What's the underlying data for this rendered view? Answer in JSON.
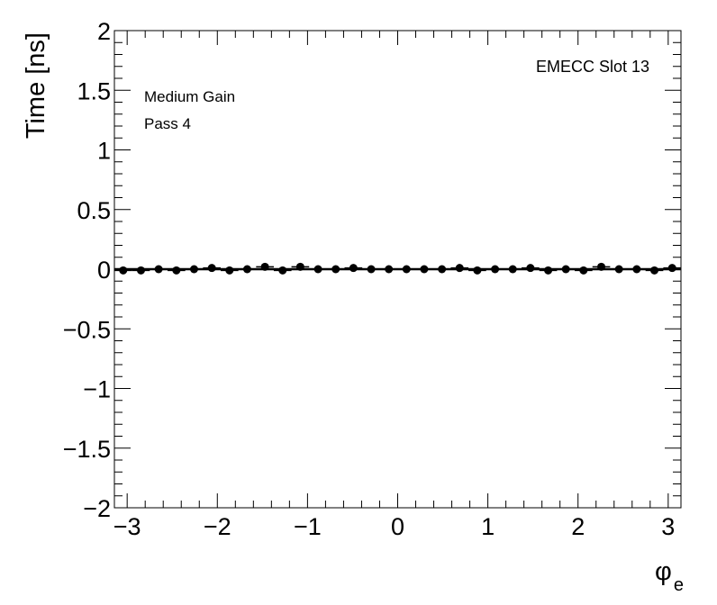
{
  "chart_data": {
    "type": "scatter",
    "xlabel_symbol": "φ",
    "xlabel_subscript": "e",
    "ylabel": "Time [ns]",
    "xlim": [
      -3.1416,
      3.1416
    ],
    "ylim": [
      -2,
      2
    ],
    "x_ticks": [
      -3,
      -2,
      -1,
      0,
      1,
      2,
      3
    ],
    "x_tick_labels": [
      "−3",
      "−2",
      "−1",
      "0",
      "1",
      "2",
      "3"
    ],
    "y_ticks": [
      -2,
      -1.5,
      -1,
      -0.5,
      0,
      0.5,
      1,
      1.5,
      2
    ],
    "y_tick_labels": [
      "−2",
      "−1.5",
      "−1",
      "−0.5",
      "0",
      "0.5",
      "1",
      "1.5",
      "2"
    ],
    "annotations": {
      "top_right": "EMECC Slot 13",
      "line1": "Medium Gain",
      "line2": "Pass 4"
    },
    "grid": false,
    "horizontal_reference_line": 0,
    "series": [
      {
        "x": [
          -3.044,
          -2.847,
          -2.651,
          -2.454,
          -2.258,
          -2.061,
          -1.865,
          -1.669,
          -1.472,
          -1.276,
          -1.08,
          -0.883,
          -0.687,
          -0.491,
          -0.294,
          -0.098,
          0.098,
          0.294,
          0.491,
          0.687,
          0.883,
          1.08,
          1.276,
          1.472,
          1.669,
          1.865,
          2.061,
          2.258,
          2.454,
          2.651,
          2.847,
          3.044
        ],
        "y": [
          -0.01,
          -0.01,
          0.0,
          -0.01,
          0.0,
          0.01,
          -0.01,
          0.0,
          0.02,
          -0.01,
          0.02,
          0.0,
          0.0,
          0.01,
          0.0,
          0.0,
          0.0,
          0.0,
          0.0,
          0.01,
          -0.01,
          0.0,
          0.0,
          0.01,
          -0.01,
          0.0,
          -0.01,
          0.02,
          0.0,
          0.0,
          -0.01,
          0.01
        ],
        "yerr": [
          0.005,
          0.005,
          0.005,
          0.005,
          0.005,
          0.005,
          0.005,
          0.005,
          0.005,
          0.005,
          0.005,
          0.005,
          0.005,
          0.005,
          0.005,
          0.005,
          0.005,
          0.005,
          0.005,
          0.005,
          0.005,
          0.005,
          0.005,
          0.005,
          0.005,
          0.005,
          0.005,
          0.005,
          0.005,
          0.005,
          0.005,
          0.005
        ],
        "color": "#000000"
      }
    ]
  }
}
